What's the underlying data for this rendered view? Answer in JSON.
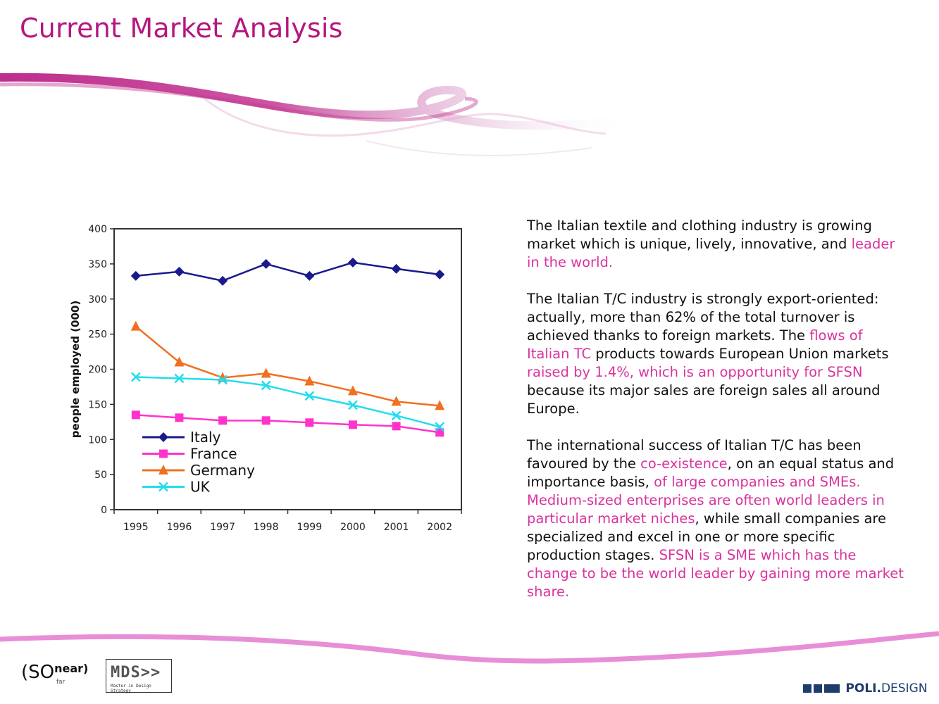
{
  "slide": {
    "title": "Current Market Analysis"
  },
  "text": {
    "p1": [
      {
        "t": "The Italian textile and clothing industry is growing market which is unique, lively, innovative, and ",
        "pink": false
      },
      {
        "t": "leader in the world.",
        "pink": true
      }
    ],
    "p2": [
      {
        "t": "The Italian T/C industry is strongly export-oriented: actually, more than 62% of the total turnover is achieved thanks to foreign markets. The ",
        "pink": false
      },
      {
        "t": "flows of Italian TC",
        "pink": true
      },
      {
        "t": " products towards European Union markets ",
        "pink": false
      },
      {
        "t": "raised by 1.4%, which is an opportunity for SFSN",
        "pink": true
      },
      {
        "t": " because its major sales are foreign sales all around Europe.",
        "pink": false
      }
    ],
    "p3": [
      {
        "t": "The international success of  Italian T/C has been favoured by the ",
        "pink": false
      },
      {
        "t": "co-existence",
        "pink": true
      },
      {
        "t": ", on an equal status and importance basis, ",
        "pink": false
      },
      {
        "t": "of large companies and SMEs. Medium-sized enterprises are often world leaders in particular market niches",
        "pink": true
      },
      {
        "t": ", while small companies are specialized and excel in one or more specific production stages. ",
        "pink": false
      },
      {
        "t": "SFSN is a SME which has the change to be the world leader by gaining more market share.",
        "pink": true
      }
    ]
  },
  "logos": {
    "sonear_main": "(SO",
    "sonear_near": "near)",
    "sonear_far": "far",
    "mds_main": "MDS>>",
    "mds_sub": "Master in Design Strategy",
    "poli_bold": "POLI.",
    "poli_rest": "DESIGN"
  },
  "colors": {
    "accent": "#b5177f",
    "pink_text": "#d9339e"
  },
  "chart_data": {
    "type": "line",
    "title": "",
    "xlabel": "",
    "ylabel": "people employed (000)",
    "categories": [
      "1995",
      "1996",
      "1997",
      "1998",
      "1999",
      "2000",
      "2001",
      "2002"
    ],
    "ylim": [
      0,
      400
    ],
    "yticks": [
      0,
      50,
      100,
      150,
      200,
      250,
      300,
      350,
      400
    ],
    "grid": false,
    "legend_position": "bottom-left",
    "series": [
      {
        "name": "Italy",
        "color": "#1a1a8c",
        "marker": "diamond",
        "values": [
          333,
          339,
          326,
          350,
          333,
          352,
          343,
          335
        ]
      },
      {
        "name": "France",
        "color": "#ff33cc",
        "marker": "square",
        "values": [
          135,
          131,
          127,
          127,
          124,
          121,
          119,
          110
        ]
      },
      {
        "name": "Germany",
        "color": "#f07020",
        "marker": "triangle",
        "values": [
          261,
          210,
          188,
          194,
          183,
          169,
          154,
          148
        ]
      },
      {
        "name": "UK",
        "color": "#22ddee",
        "marker": "x",
        "values": [
          189,
          187,
          185,
          177,
          162,
          149,
          134,
          118
        ]
      }
    ]
  }
}
